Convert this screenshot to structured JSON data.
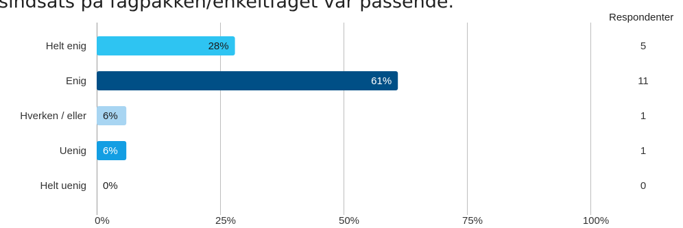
{
  "title": "sindsats på fagpakken/enkeltfaget var passende.",
  "respondents_header": "Respondenter",
  "chart_data": {
    "type": "bar",
    "orientation": "horizontal",
    "categories": [
      "Helt enig",
      "Enig",
      "Hverken / eller",
      "Uenig",
      "Helt uenig"
    ],
    "values": [
      28,
      61,
      6,
      6,
      0
    ],
    "value_labels": [
      "28%",
      "61%",
      "6%",
      "6%",
      "0%"
    ],
    "respondents": [
      5,
      11,
      1,
      1,
      0
    ],
    "respondent_labels": [
      "5",
      "11",
      "1",
      "1",
      "0"
    ],
    "colors": [
      "#2ec4f2",
      "#004f86",
      "#a8d5f2",
      "#139ee3",
      "#139ee3"
    ],
    "label_colors": [
      "#1a1a1a",
      "#ffffff",
      "#1a1a1a",
      "#ffffff",
      "#1a1a1a"
    ],
    "xlim": [
      0,
      100
    ],
    "xticks": [
      0,
      25,
      50,
      75,
      100
    ],
    "xtick_labels": [
      "0%",
      "25%",
      "50%",
      "75%",
      "100%"
    ],
    "grid": true,
    "gridline_color": "#bdbdbd"
  }
}
